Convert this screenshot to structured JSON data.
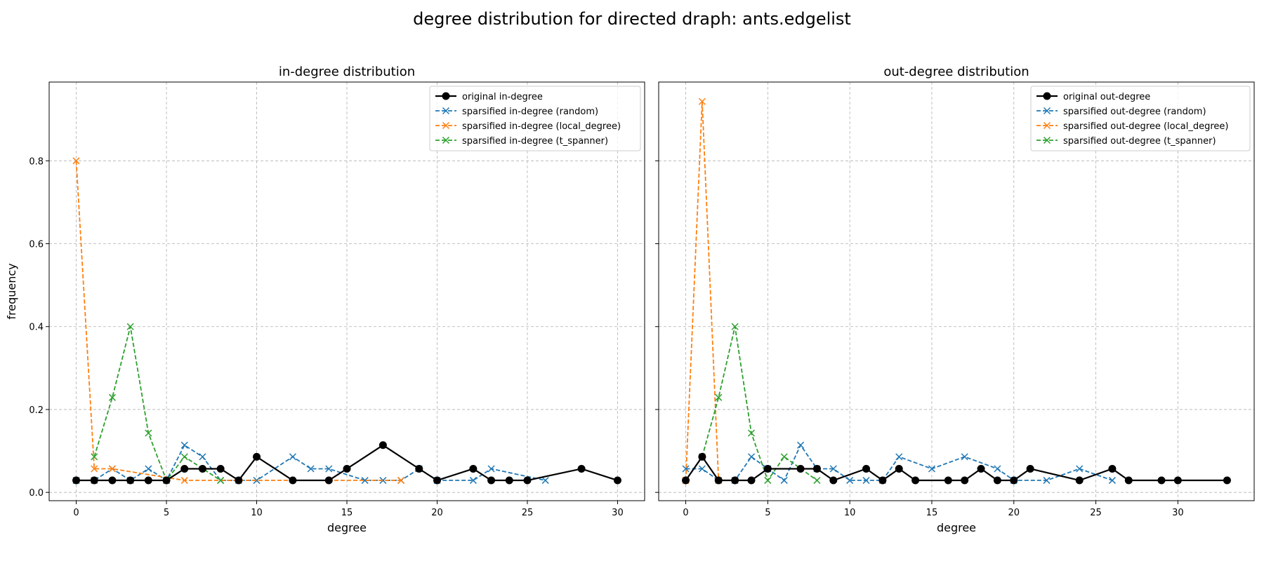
{
  "suptitle": "degree distribution for directed draph: ants.edgelist",
  "chart_data": [
    {
      "type": "line",
      "title": "in-degree distribution",
      "xlabel": "degree",
      "ylabel": "frequency",
      "xlim": [
        -1.5,
        31.5
      ],
      "ylim": [
        -0.02,
        0.99
      ],
      "xticks": [
        0,
        5,
        10,
        15,
        20,
        25,
        30
      ],
      "yticks": [
        0.0,
        0.2,
        0.4,
        0.6,
        0.8
      ],
      "grid": true,
      "legend_position": "top-right",
      "series": [
        {
          "name": "original in-degree",
          "color": "#000000",
          "style": "solid",
          "marker": "circle",
          "x": [
            0,
            1,
            2,
            3,
            4,
            5,
            6,
            7,
            8,
            9,
            10,
            12,
            14,
            15,
            17,
            19,
            20,
            22,
            23,
            24,
            25,
            28,
            30
          ],
          "y": [
            0.029,
            0.029,
            0.029,
            0.029,
            0.029,
            0.029,
            0.057,
            0.057,
            0.057,
            0.029,
            0.086,
            0.029,
            0.029,
            0.057,
            0.114,
            0.057,
            0.029,
            0.057,
            0.029,
            0.029,
            0.029,
            0.057,
            0.029
          ]
        },
        {
          "name": "sparsified in-degree (random)",
          "color": "#1f77b4",
          "style": "dashed",
          "marker": "x",
          "x": [
            0,
            1,
            2,
            3,
            4,
            5,
            6,
            7,
            8,
            9,
            10,
            12,
            13,
            14,
            16,
            17,
            18,
            19,
            20,
            22,
            23,
            26
          ],
          "y": [
            0.029,
            0.029,
            0.057,
            0.029,
            0.057,
            0.029,
            0.114,
            0.086,
            0.029,
            0.029,
            0.029,
            0.086,
            0.057,
            0.057,
            0.029,
            0.029,
            0.029,
            0.057,
            0.029,
            0.029,
            0.057,
            0.029
          ]
        },
        {
          "name": "sparsified in-degree (local_degree)",
          "color": "#ff7f0e",
          "style": "dashed",
          "marker": "x",
          "x": [
            0,
            1,
            2,
            6,
            18
          ],
          "y": [
            0.8,
            0.057,
            0.057,
            0.029,
            0.029
          ]
        },
        {
          "name": "sparsified in-degree (t_spanner)",
          "color": "#2ca02c",
          "style": "dashed",
          "marker": "x",
          "x": [
            1,
            2,
            3,
            4,
            5,
            6,
            8
          ],
          "y": [
            0.086,
            0.229,
            0.4,
            0.143,
            0.029,
            0.086,
            0.029
          ]
        }
      ]
    },
    {
      "type": "line",
      "title": "out-degree distribution",
      "xlabel": "degree",
      "ylabel": "",
      "xlim": [
        -1.65,
        34.65
      ],
      "ylim": [
        -0.02,
        0.99
      ],
      "xticks": [
        0,
        5,
        10,
        15,
        20,
        25,
        30
      ],
      "yticks": [
        0.0,
        0.2,
        0.4,
        0.6,
        0.8
      ],
      "grid": true,
      "legend_position": "top-right",
      "series": [
        {
          "name": "original out-degree",
          "color": "#000000",
          "style": "solid",
          "marker": "circle",
          "x": [
            0,
            1,
            2,
            3,
            4,
            5,
            7,
            8,
            9,
            11,
            12,
            13,
            14,
            16,
            17,
            18,
            19,
            20,
            21,
            24,
            26,
            27,
            29,
            30,
            33
          ],
          "y": [
            0.029,
            0.086,
            0.029,
            0.029,
            0.029,
            0.057,
            0.057,
            0.057,
            0.029,
            0.057,
            0.029,
            0.057,
            0.029,
            0.029,
            0.029,
            0.057,
            0.029,
            0.029,
            0.057,
            0.029,
            0.057,
            0.029,
            0.029,
            0.029,
            0.029
          ]
        },
        {
          "name": "sparsified out-degree (random)",
          "color": "#1f77b4",
          "style": "dashed",
          "marker": "x",
          "x": [
            0,
            1,
            2,
            3,
            4,
            5,
            6,
            7,
            8,
            9,
            10,
            11,
            12,
            13,
            15,
            17,
            19,
            20,
            22,
            24,
            26
          ],
          "y": [
            0.057,
            0.057,
            0.029,
            0.029,
            0.086,
            0.057,
            0.029,
            0.114,
            0.057,
            0.057,
            0.029,
            0.029,
            0.029,
            0.086,
            0.057,
            0.086,
            0.057,
            0.029,
            0.029,
            0.057,
            0.029
          ]
        },
        {
          "name": "sparsified out-degree (local_degree)",
          "color": "#ff7f0e",
          "style": "dashed",
          "marker": "x",
          "x": [
            0,
            1,
            2
          ],
          "y": [
            0.029,
            0.943,
            0.029
          ]
        },
        {
          "name": "sparsified out-degree (t_spanner)",
          "color": "#2ca02c",
          "style": "dashed",
          "marker": "x",
          "x": [
            1,
            2,
            3,
            4,
            5,
            6,
            8
          ],
          "y": [
            0.086,
            0.229,
            0.4,
            0.143,
            0.029,
            0.086,
            0.029
          ]
        }
      ]
    }
  ]
}
